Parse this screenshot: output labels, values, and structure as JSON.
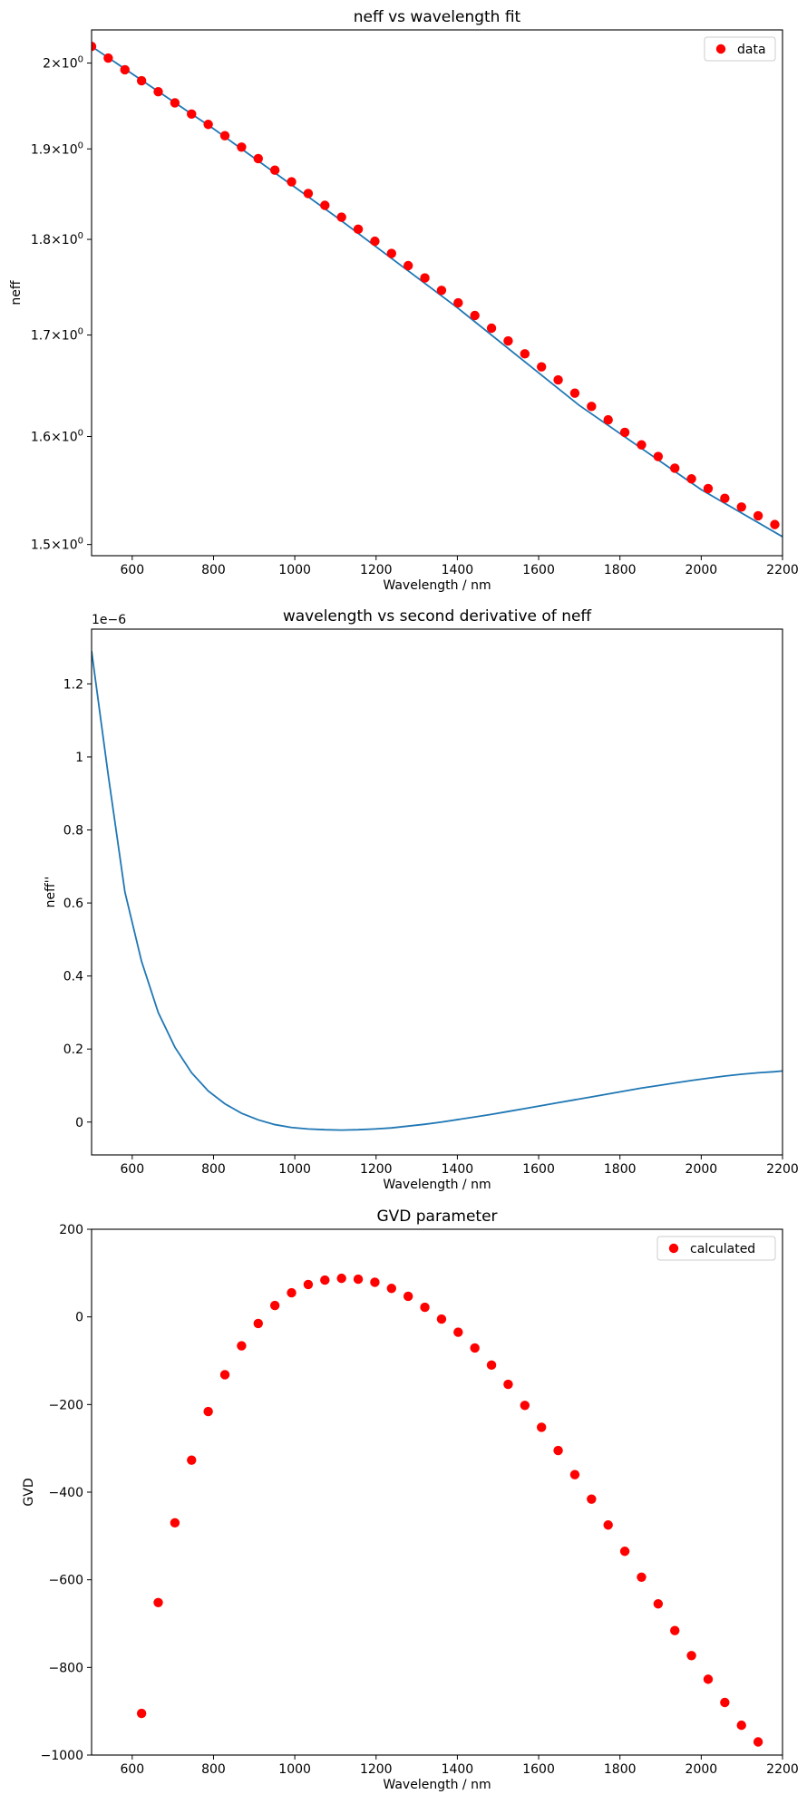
{
  "chart_data": [
    {
      "type": "line",
      "title": "neff vs wavelength fit",
      "xlabel": "Wavelength / nm",
      "ylabel": "neff",
      "xlim": [
        500,
        2200
      ],
      "ylim": [
        1.49,
        2.04
      ],
      "yscale": "log",
      "grid": false,
      "legend": {
        "position": "top-right",
        "entries": [
          "data"
        ]
      },
      "x_ticks": [
        600,
        800,
        1000,
        1200,
        1400,
        1600,
        1800,
        2000,
        2200
      ],
      "y_ticks": [
        {
          "value": 1.5,
          "mant": "1.5",
          "exp": "0"
        },
        {
          "value": 1.6,
          "mant": "1.6",
          "exp": "0"
        },
        {
          "value": 1.7,
          "mant": "1.7",
          "exp": "0"
        },
        {
          "value": 1.8,
          "mant": "1.8",
          "exp": "0"
        },
        {
          "value": 1.9,
          "mant": "1.9",
          "exp": "0"
        },
        {
          "value": 2.0,
          "mant": "2",
          "exp": "0"
        }
      ],
      "series": [
        {
          "name": "data",
          "kind": "scatter",
          "color": "#ff0000",
          "x": [
            500,
            541,
            582,
            623,
            664,
            705,
            746,
            787,
            828,
            869,
            910,
            951,
            992,
            1033,
            1074,
            1115,
            1156,
            1197,
            1238,
            1279,
            1320,
            1361,
            1402,
            1443,
            1484,
            1525,
            1566,
            1607,
            1648,
            1689,
            1730,
            1771,
            1812,
            1853,
            1894,
            1935,
            1976,
            2017,
            2058,
            2099,
            2140,
            2181
          ],
          "y": [
            2.02,
            2.006,
            1.992,
            1.979,
            1.966,
            1.953,
            1.94,
            1.928,
            1.915,
            1.902,
            1.889,
            1.876,
            1.863,
            1.85,
            1.837,
            1.824,
            1.811,
            1.798,
            1.785,
            1.772,
            1.759,
            1.746,
            1.733,
            1.72,
            1.707,
            1.694,
            1.681,
            1.668,
            1.655,
            1.642,
            1.629,
            1.616,
            1.604,
            1.592,
            1.581,
            1.57,
            1.56,
            1.551,
            1.542,
            1.534,
            1.526,
            1.518
          ]
        },
        {
          "kind": "line",
          "color": "#1f77b4",
          "x": [
            500,
            800,
            1100,
            1400,
            1700,
            2000,
            2200
          ],
          "y": [
            2.02,
            1.923,
            1.825,
            1.728,
            1.63,
            1.55,
            1.507
          ]
        }
      ]
    },
    {
      "type": "line",
      "title": "wavelength vs second derivative of neff",
      "xlabel": "Wavelength / nm",
      "ylabel": "neff''",
      "offset_text": "1e−6",
      "xlim": [
        500,
        2200
      ],
      "ylim": [
        -0.09,
        1.35
      ],
      "grid": false,
      "x_ticks": [
        600,
        800,
        1000,
        1200,
        1400,
        1600,
        1800,
        2000,
        2200
      ],
      "y_ticks": [
        0.0,
        0.2,
        0.4,
        0.6,
        0.8,
        1.0,
        1.2
      ],
      "series": [
        {
          "kind": "line",
          "color": "#1f77b4",
          "x": [
            500,
            541,
            582,
            623,
            664,
            705,
            746,
            787,
            828,
            869,
            910,
            951,
            992,
            1033,
            1074,
            1115,
            1156,
            1197,
            1238,
            1279,
            1320,
            1361,
            1402,
            1443,
            1484,
            1525,
            1566,
            1607,
            1648,
            1689,
            1730,
            1771,
            1812,
            1853,
            1894,
            1935,
            1976,
            2017,
            2058,
            2099,
            2140,
            2181,
            2200
          ],
          "y": [
            1.29,
            0.95,
            0.63,
            0.44,
            0.3,
            0.205,
            0.135,
            0.085,
            0.05,
            0.024,
            0.006,
            -0.007,
            -0.015,
            -0.019,
            -0.021,
            -0.022,
            -0.021,
            -0.019,
            -0.016,
            -0.011,
            -0.006,
            0.0,
            0.007,
            0.014,
            0.021,
            0.029,
            0.037,
            0.045,
            0.053,
            0.061,
            0.069,
            0.077,
            0.085,
            0.093,
            0.1,
            0.107,
            0.114,
            0.12,
            0.126,
            0.131,
            0.135,
            0.138,
            0.14
          ]
        }
      ]
    },
    {
      "type": "scatter",
      "title": "GVD parameter",
      "xlabel": "Wavelength / nm",
      "ylabel": "GVD",
      "xlim": [
        500,
        2200
      ],
      "ylim": [
        -1000,
        200
      ],
      "grid": false,
      "legend": {
        "position": "top-right",
        "entries": [
          "calculated"
        ]
      },
      "x_ticks": [
        600,
        800,
        1000,
        1200,
        1400,
        1600,
        1800,
        2000,
        2200
      ],
      "y_ticks": [
        -1000,
        -800,
        -600,
        -400,
        -200,
        0,
        200
      ],
      "series": [
        {
          "name": "calculated",
          "kind": "scatter",
          "color": "#ff0000",
          "x": [
            623,
            664,
            705,
            746,
            787,
            828,
            869,
            910,
            951,
            992,
            1033,
            1074,
            1115,
            1156,
            1197,
            1238,
            1279,
            1320,
            1361,
            1402,
            1443,
            1484,
            1525,
            1566,
            1607,
            1648,
            1689,
            1730,
            1771,
            1812,
            1853,
            1894,
            1935,
            1976,
            2017,
            2058,
            2099,
            2140
          ],
          "y": [
            -905,
            -652,
            -470,
            -327,
            -216,
            -132,
            -66,
            -15,
            26,
            55,
            74,
            84,
            88,
            86,
            79,
            65,
            47,
            22,
            -5,
            -35,
            -71,
            -110,
            -154,
            -202,
            -252,
            -305,
            -360,
            -416,
            -475,
            -535,
            -594,
            -655,
            -716,
            -773,
            -827,
            -880,
            -932,
            -970
          ]
        }
      ]
    }
  ]
}
